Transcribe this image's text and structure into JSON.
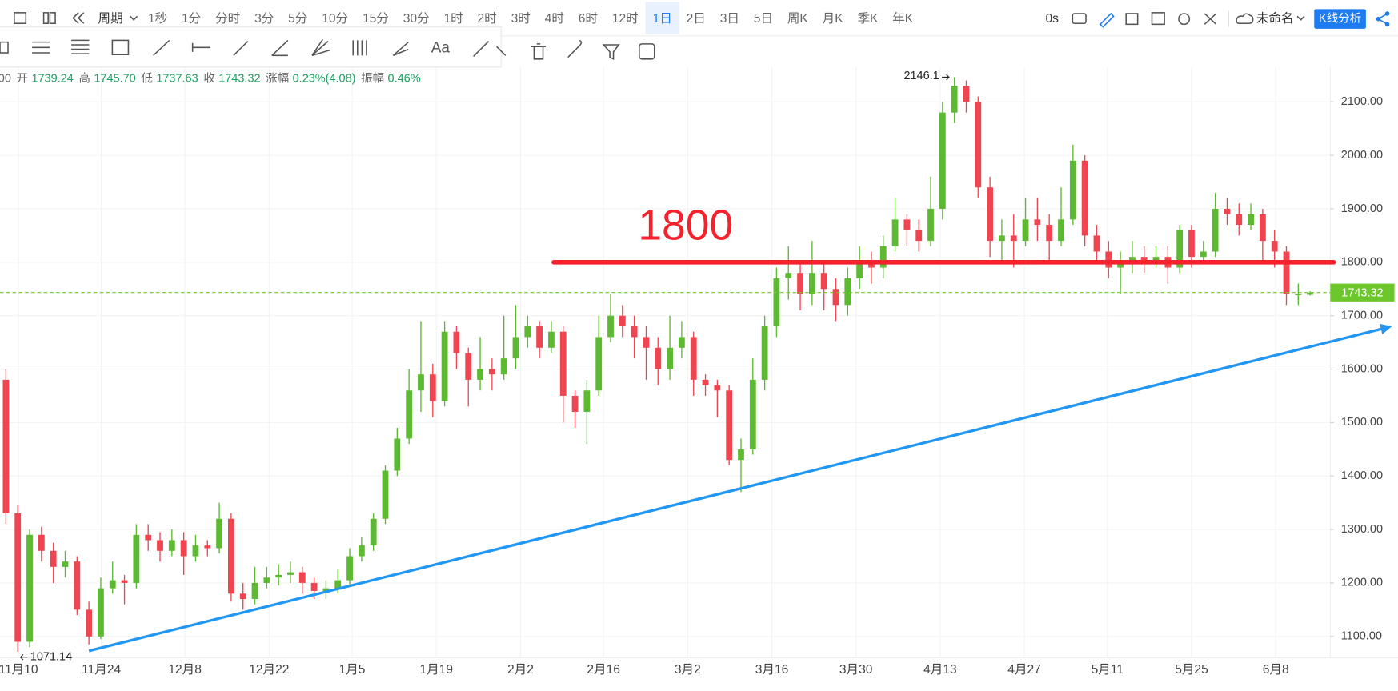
{
  "toolbar": {
    "period": "周期",
    "intervals": [
      "1秒",
      "1分",
      "分时",
      "3分",
      "5分",
      "10分",
      "15分",
      "30分",
      "1时",
      "2时",
      "3时",
      "4时",
      "6时",
      "12时",
      "1日",
      "2日",
      "3日",
      "5日",
      "周K",
      "月K",
      "季K",
      "年K"
    ],
    "active": 14,
    "timer": "0s",
    "layout_name": "未命名",
    "analysis_button": "K线分析",
    "text_tool": "Aa"
  },
  "header": {
    "prefix": "00",
    "items": [
      {
        "label": "开",
        "value": "1739.24"
      },
      {
        "label": "高",
        "value": "1745.70"
      },
      {
        "label": "低",
        "value": "1737.63"
      },
      {
        "label": "收",
        "value": "1743.32"
      },
      {
        "label": "涨幅",
        "value": "0.23%(4.08)"
      },
      {
        "label": "振幅",
        "value": "0.46%"
      }
    ]
  },
  "chart_data": {
    "type": "candlestick",
    "open": [
      1580,
      1330,
      1090,
      1290,
      1260,
      1230,
      1240,
      1150,
      1100,
      1190,
      1205,
      1200,
      1290,
      1280,
      1260,
      1280,
      1250,
      1270,
      1265,
      1320,
      1180,
      1170,
      1200,
      1210,
      1215,
      1220,
      1200,
      1185,
      1190,
      1205,
      1250,
      1270,
      1320,
      1410,
      1470,
      1560,
      1590,
      1540,
      1670,
      1630,
      1580,
      1600,
      1590,
      1620,
      1660,
      1680,
      1640,
      1670,
      1550,
      1520,
      1560,
      1660,
      1700,
      1680,
      1660,
      1640,
      1600,
      1640,
      1660,
      1580,
      1570,
      1560,
      1430,
      1450,
      1580,
      1680,
      1770,
      1780,
      1740,
      1780,
      1750,
      1720,
      1770,
      1800,
      1790,
      1830,
      1880,
      1860,
      1840,
      1900,
      2080,
      2130,
      2100,
      1940,
      1840,
      1850,
      1840,
      1880,
      1870,
      1840,
      1880,
      1990,
      1850,
      1820,
      1790,
      1800,
      1810,
      1800,
      1810,
      1790,
      1860,
      1810,
      1820,
      1900,
      1890,
      1870,
      1890,
      1840,
      1820,
      1740,
      1739.24
    ],
    "high": [
      1600,
      1345,
      1300,
      1305,
      1275,
      1260,
      1250,
      1165,
      1210,
      1240,
      1215,
      1310,
      1310,
      1295,
      1300,
      1295,
      1290,
      1280,
      1350,
      1330,
      1200,
      1230,
      1230,
      1235,
      1240,
      1230,
      1210,
      1205,
      1225,
      1265,
      1285,
      1330,
      1420,
      1490,
      1600,
      1690,
      1610,
      1690,
      1680,
      1640,
      1660,
      1620,
      1700,
      1720,
      1700,
      1690,
      1690,
      1680,
      1560,
      1580,
      1700,
      1740,
      1720,
      1700,
      1680,
      1660,
      1700,
      1690,
      1670,
      1590,
      1580,
      1570,
      1470,
      1620,
      1700,
      1790,
      1830,
      1800,
      1840,
      1800,
      1770,
      1790,
      1830,
      1820,
      1850,
      1920,
      1890,
      1880,
      1960,
      2100,
      2146.1,
      2140,
      2110,
      1960,
      1880,
      1890,
      1920,
      1920,
      1890,
      1940,
      2020,
      2000,
      1870,
      1840,
      1820,
      1840,
      1830,
      1830,
      1830,
      1870,
      1870,
      1840,
      1930,
      1920,
      1910,
      1910,
      1900,
      1860,
      1830,
      1760,
      1745.7
    ],
    "low": [
      1310,
      1071.14,
      1080,
      1240,
      1200,
      1210,
      1140,
      1085,
      1095,
      1180,
      1160,
      1190,
      1260,
      1240,
      1250,
      1215,
      1240,
      1250,
      1255,
      1165,
      1150,
      1160,
      1190,
      1195,
      1200,
      1180,
      1170,
      1170,
      1180,
      1195,
      1240,
      1260,
      1310,
      1400,
      1460,
      1520,
      1510,
      1530,
      1600,
      1530,
      1560,
      1560,
      1580,
      1600,
      1640,
      1620,
      1630,
      1500,
      1490,
      1460,
      1550,
      1650,
      1660,
      1620,
      1580,
      1570,
      1580,
      1620,
      1550,
      1550,
      1510,
      1420,
      1370,
      1440,
      1560,
      1660,
      1730,
      1710,
      1720,
      1710,
      1690,
      1700,
      1750,
      1760,
      1770,
      1820,
      1830,
      1820,
      1830,
      1880,
      2060,
      2080,
      1920,
      1810,
      1800,
      1790,
      1830,
      1840,
      1800,
      1830,
      1870,
      1830,
      1800,
      1770,
      1740,
      1780,
      1780,
      1790,
      1760,
      1780,
      1790,
      1800,
      1810,
      1870,
      1850,
      1860,
      1800,
      1790,
      1720,
      1720,
      1737.63
    ],
    "close": [
      1330,
      1090,
      1290,
      1260,
      1230,
      1240,
      1150,
      1100,
      1190,
      1205,
      1200,
      1290,
      1280,
      1260,
      1280,
      1250,
      1270,
      1265,
      1320,
      1180,
      1170,
      1200,
      1210,
      1215,
      1220,
      1200,
      1185,
      1190,
      1205,
      1250,
      1270,
      1320,
      1410,
      1470,
      1560,
      1590,
      1540,
      1670,
      1630,
      1580,
      1600,
      1590,
      1620,
      1660,
      1680,
      1640,
      1670,
      1550,
      1520,
      1560,
      1660,
      1700,
      1680,
      1660,
      1640,
      1600,
      1640,
      1660,
      1580,
      1570,
      1560,
      1430,
      1450,
      1580,
      1680,
      1770,
      1780,
      1740,
      1780,
      1750,
      1720,
      1770,
      1800,
      1790,
      1830,
      1880,
      1860,
      1840,
      1900,
      2080,
      2130,
      2100,
      1940,
      1840,
      1850,
      1840,
      1880,
      1870,
      1840,
      1880,
      1990,
      1850,
      1820,
      1790,
      1800,
      1810,
      1800,
      1810,
      1790,
      1860,
      1810,
      1820,
      1900,
      1890,
      1870,
      1890,
      1840,
      1820,
      1740,
      1740,
      1743.32
    ],
    "up_color": "#5db832",
    "down_color": "#f04550",
    "xlim": [
      -0.5,
      111.7
    ],
    "xticks": [
      {
        "value": 1.05,
        "label": "11月10"
      },
      {
        "value": 8.05,
        "label": "11月24"
      },
      {
        "value": 15.1,
        "label": "12月8"
      },
      {
        "value": 22.2,
        "label": "12月22"
      },
      {
        "value": 29.2,
        "label": "1月5"
      },
      {
        "value": 36.3,
        "label": "1月19"
      },
      {
        "value": 43.4,
        "label": "2月2"
      },
      {
        "value": 50.4,
        "label": "2月16"
      },
      {
        "value": 57.5,
        "label": "3月2"
      },
      {
        "value": 64.6,
        "label": "3月16"
      },
      {
        "value": 71.7,
        "label": "3月30"
      },
      {
        "value": 78.8,
        "label": "4月13"
      },
      {
        "value": 85.9,
        "label": "4月27"
      },
      {
        "value": 92.9,
        "label": "5月11"
      },
      {
        "value": 100,
        "label": "5月25"
      },
      {
        "value": 107.1,
        "label": "6月8"
      }
    ],
    "ylim": [
      1060,
      2165
    ],
    "yticks": [
      {
        "value": 1100,
        "label": "1100.00"
      },
      {
        "value": 1200,
        "label": "1200.00"
      },
      {
        "value": 1300,
        "label": "1300.00"
      },
      {
        "value": 1400,
        "label": "1400.00"
      },
      {
        "value": 1500,
        "label": "1500.00"
      },
      {
        "value": 1600,
        "label": "1600.00"
      },
      {
        "value": 1700,
        "label": "1700.00"
      },
      {
        "value": 1800,
        "label": "1800.00"
      },
      {
        "value": 1900,
        "label": "1900.00"
      },
      {
        "value": 2000,
        "label": "2000.00"
      },
      {
        "value": 2100,
        "label": "2100.00"
      }
    ],
    "grid": true,
    "last_price_line": true,
    "last_price_color": "#6cc72c",
    "annotations": {
      "hline": {
        "value": 1800,
        "from": 46.2,
        "to": 112,
        "color": "#f5222d"
      },
      "trendline": {
        "from": {
          "x": 7,
          "y": 1073
        },
        "to": {
          "x": 116.9,
          "y": 1680
        },
        "color": "#2196f3"
      }
    }
  }
}
